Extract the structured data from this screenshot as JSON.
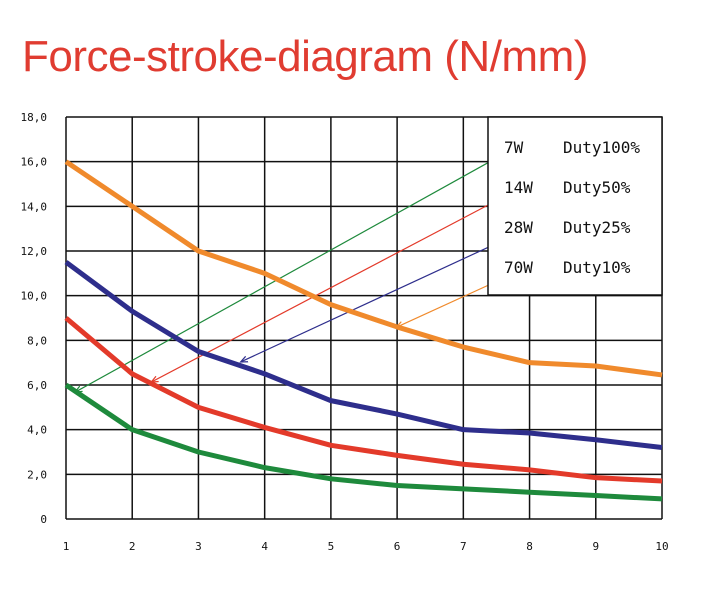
{
  "chart_data": {
    "type": "line",
    "title": "Force-stroke-diagram (N/mm)",
    "x": [
      1,
      2,
      3,
      4,
      5,
      6,
      7,
      8,
      9,
      10
    ],
    "xlim": [
      1,
      10
    ],
    "ylim": [
      0,
      18
    ],
    "x_ticks": [
      "1",
      "2",
      "3",
      "4",
      "5",
      "6",
      "7",
      "8",
      "9",
      "10"
    ],
    "y_ticks": [
      "0",
      "2,0",
      "4,0",
      "6,0",
      "8,0",
      "10,0",
      "12,0",
      "14,0",
      "16,0",
      "18,0"
    ],
    "grid": true,
    "legend_position": "top-right",
    "series": [
      {
        "name": "7W Duty100%",
        "watts": "7W",
        "duty": "Duty100%",
        "color": "#f08a2c",
        "values": [
          16.0,
          14.0,
          12.0,
          11.0,
          9.6,
          8.6,
          7.7,
          7.0,
          6.85,
          6.45
        ]
      },
      {
        "name": "14W Duty50%",
        "watts": "14W",
        "duty": "Duty50%",
        "color": "#2e2e8c",
        "values": [
          11.5,
          9.3,
          7.5,
          6.5,
          5.3,
          4.7,
          4.0,
          3.85,
          3.55,
          3.2
        ]
      },
      {
        "name": "28W Duty25%",
        "watts": "28W",
        "duty": "Duty25%",
        "color": "#e33a2a",
        "values": [
          9.0,
          6.5,
          5.0,
          4.1,
          3.3,
          2.85,
          2.45,
          2.2,
          1.85,
          1.7
        ]
      },
      {
        "name": "70W Duty10%",
        "watts": "70W",
        "duty": "Duty10%",
        "color": "#1e8a3c",
        "values": [
          6.0,
          4.0,
          3.0,
          2.3,
          1.8,
          1.5,
          1.35,
          1.2,
          1.05,
          0.9
        ]
      }
    ],
    "legend_pointers": [
      {
        "series": "7W Duty100%",
        "color": "#f08a2c",
        "from": [
          7.4,
          10.5
        ],
        "to": [
          6.0,
          8.6
        ]
      },
      {
        "series": "14W Duty50%",
        "color": "#2e2e8c",
        "from": [
          7.4,
          12.2
        ],
        "to": [
          3.65,
          7.05
        ]
      },
      {
        "series": "28W Duty25%",
        "color": "#e33a2a",
        "from": [
          7.4,
          14.1
        ],
        "to": [
          2.3,
          6.15
        ]
      },
      {
        "series": "70W Duty10%",
        "color": "#1e8a3c",
        "from": [
          7.4,
          16.0
        ],
        "to": [
          1.15,
          5.7
        ]
      }
    ]
  }
}
